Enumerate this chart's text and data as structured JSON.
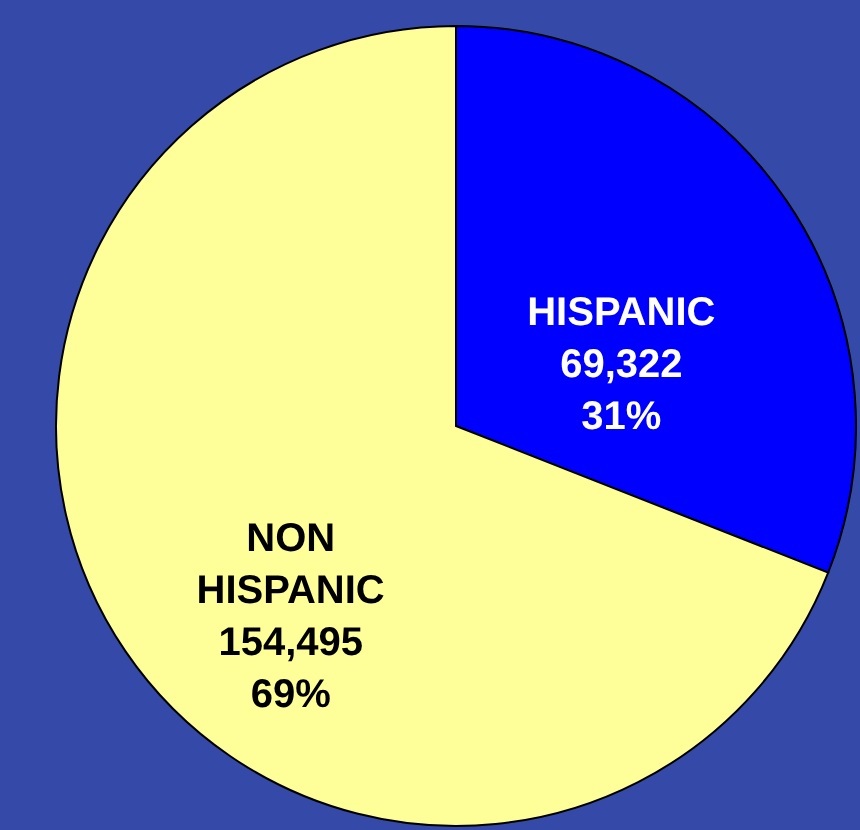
{
  "chart_data": {
    "type": "pie",
    "categories": [
      "HISPANIC",
      "NON HISPANIC"
    ],
    "values": [
      69322,
      154495
    ],
    "colors": [
      "#0000ff",
      "#ffff99"
    ],
    "value_labels": [
      "69,322\n31%",
      "154,495\n69%"
    ]
  }
}
